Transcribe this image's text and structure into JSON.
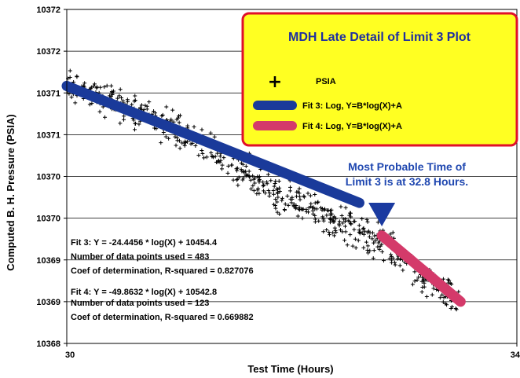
{
  "chart_data": {
    "type": "scatter",
    "title": "MDH Late Detail of Limit 3 Plot",
    "xlabel": "Test Time (Hours)",
    "ylabel": "Computed B. H. Pressure (PSIA)",
    "xlim": [
      30,
      34
    ],
    "ylim": [
      10368,
      10372.8
    ],
    "x_tick_labels": [
      "30",
      "34"
    ],
    "y_tick_labels": [
      "10368",
      "10369",
      "10369",
      "10370",
      "10370",
      "10371",
      "10371",
      "10372",
      "10372"
    ],
    "grid": "horizontal",
    "legend_position": "top-right",
    "colors": {
      "points": "#000000",
      "fit3": "#1a3a9a",
      "fit4": "#d43a6a",
      "legend_bg": "#ffff22",
      "legend_border": "#e0102a",
      "annotation": "#1f47b0"
    },
    "series": [
      {
        "name": "PSIA",
        "kind": "scatter",
        "trend": [
          [
            30.0,
            10371.75
          ],
          [
            31.0,
            10371.05
          ],
          [
            32.0,
            10370.05
          ],
          [
            32.8,
            10369.45
          ],
          [
            33.5,
            10368.55
          ]
        ],
        "noise_psi": 0.35
      },
      {
        "name": "Fit 3:  Log, Y=B*log(X)+A",
        "kind": "line",
        "x": [
          30.0,
          32.6
        ],
        "y": [
          10371.7,
          10370.02
        ]
      },
      {
        "name": "Fit 4:  Log, Y=B*log(X)+A",
        "kind": "line",
        "x": [
          32.8,
          33.5
        ],
        "y": [
          10369.55,
          10368.6
        ]
      }
    ],
    "annotations": {
      "arrow_text_line1": "Most Probable Time of",
      "arrow_text_line2": "Limit 3 is at 32.8 Hours.",
      "arrow_x": 32.8
    },
    "stats": {
      "fit3_eq": "Fit 3:  Y = -24.4456 * log(X) + 10454.4",
      "fit3_points": "Number of data points used = 483",
      "fit3_r2": "Coef of determination, R-squared = 0.827076",
      "fit4_eq": "Fit 4:  Y = -49.8632 * log(X) + 10542.8",
      "fit4_points": "Number of data points used = 123",
      "fit4_r2": "Coef of determination, R-squared = 0.669882"
    }
  }
}
